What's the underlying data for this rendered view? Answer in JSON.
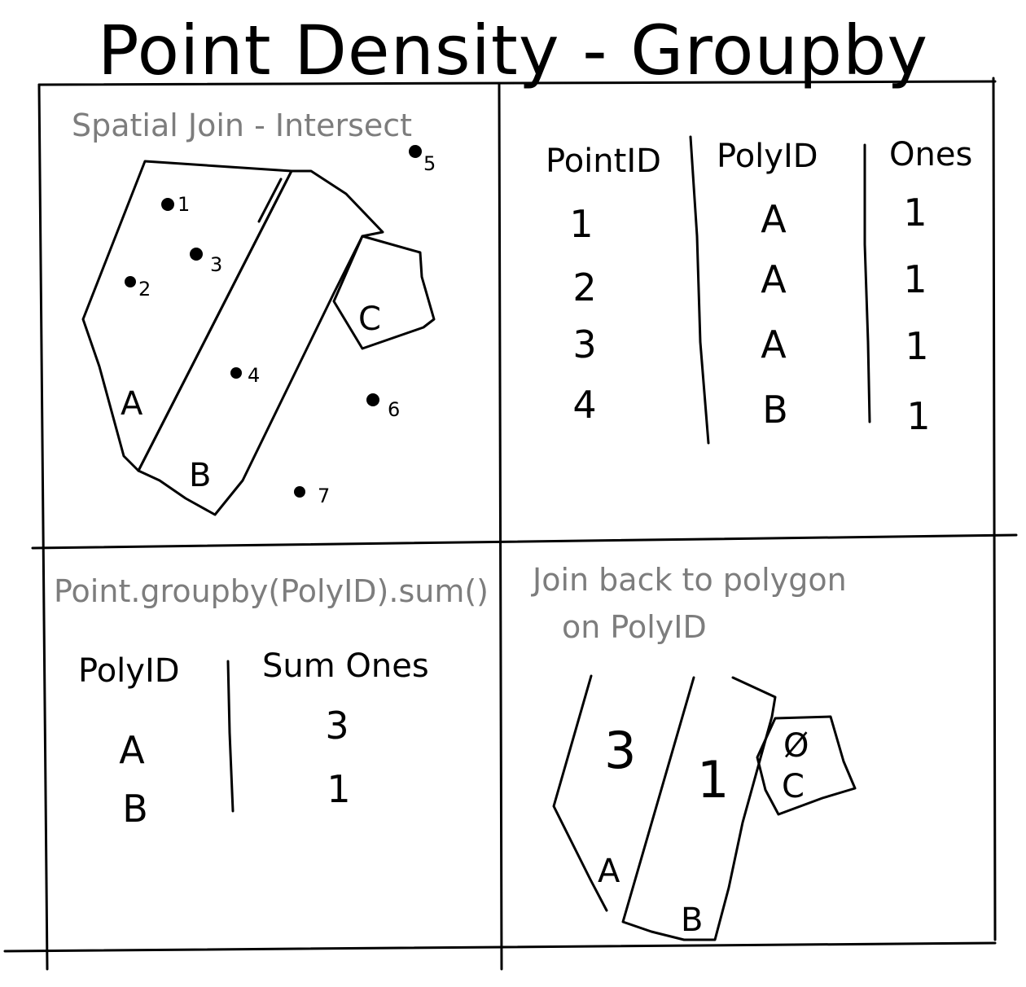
{
  "title": "Point Density - Groupby",
  "panel1": {
    "caption": "Spatial Join - Intersect",
    "polygons": [
      "A",
      "B",
      "C"
    ],
    "points": [
      "1",
      "2",
      "3",
      "4",
      "5",
      "6",
      "7"
    ]
  },
  "panel2": {
    "columns": [
      "PointID",
      "PolyID",
      "Ones"
    ],
    "rows": [
      [
        "1",
        "A",
        "1"
      ],
      [
        "2",
        "A",
        "1"
      ],
      [
        "3",
        "A",
        "1"
      ],
      [
        "4",
        "B",
        "1"
      ]
    ]
  },
  "panel3": {
    "caption": "Point.groupby(PolyID).sum()",
    "columns": [
      "PolyID",
      "Sum Ones"
    ],
    "rows": [
      [
        "A",
        "3"
      ],
      [
        "B",
        "1"
      ]
    ]
  },
  "panel4": {
    "caption_line1": "Join back to polygon",
    "caption_line2": "on PolyID",
    "polygons": [
      {
        "label": "A",
        "value": "3"
      },
      {
        "label": "B",
        "value": "1"
      },
      {
        "label": "C",
        "value": "Ø"
      }
    ]
  }
}
